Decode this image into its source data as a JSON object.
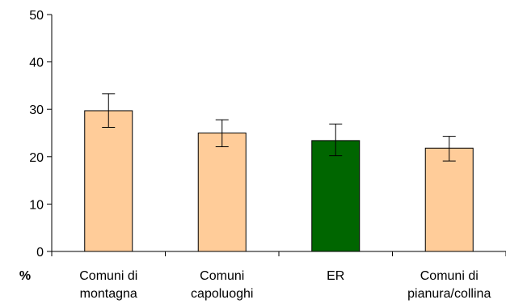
{
  "chart_data": {
    "type": "bar",
    "categories": [
      [
        "Comuni di",
        "montagna"
      ],
      [
        "Comuni",
        "capoluoghi"
      ],
      [
        "ER"
      ],
      [
        "Comuni di",
        "pianura/collina"
      ]
    ],
    "values": [
      29.7,
      25.0,
      23.4,
      21.8
    ],
    "error_low": [
      26.2,
      22.1,
      20.2,
      19.1
    ],
    "error_high": [
      33.3,
      27.8,
      26.9,
      24.3
    ],
    "colors": [
      "#FFCC99",
      "#FFCC99",
      "#006600",
      "#FFCC99"
    ],
    "ylabel": "%",
    "ylim": [
      0,
      50
    ],
    "yticks": [
      0,
      10,
      20,
      30,
      40,
      50
    ],
    "grid": false,
    "legend": "none"
  }
}
